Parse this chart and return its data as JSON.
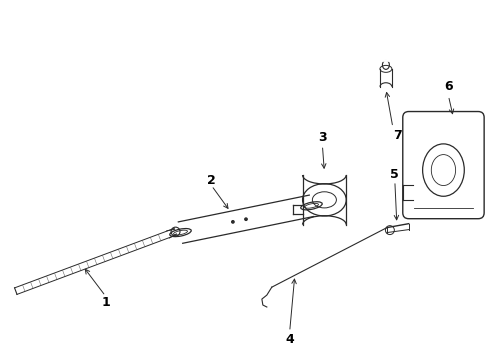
{
  "background_color": "#ffffff",
  "fig_width": 4.9,
  "fig_height": 3.6,
  "dpi": 100,
  "parts": {
    "part1_label": "1",
    "part2_label": "2",
    "part3_label": "3",
    "part4_label": "4",
    "part5_label": "5",
    "part6_label": "6",
    "part7_label": "7"
  },
  "line_color": "#2a2a2a",
  "label_color": "#000000",
  "label_fontsize": 9,
  "label_fontweight": "bold"
}
